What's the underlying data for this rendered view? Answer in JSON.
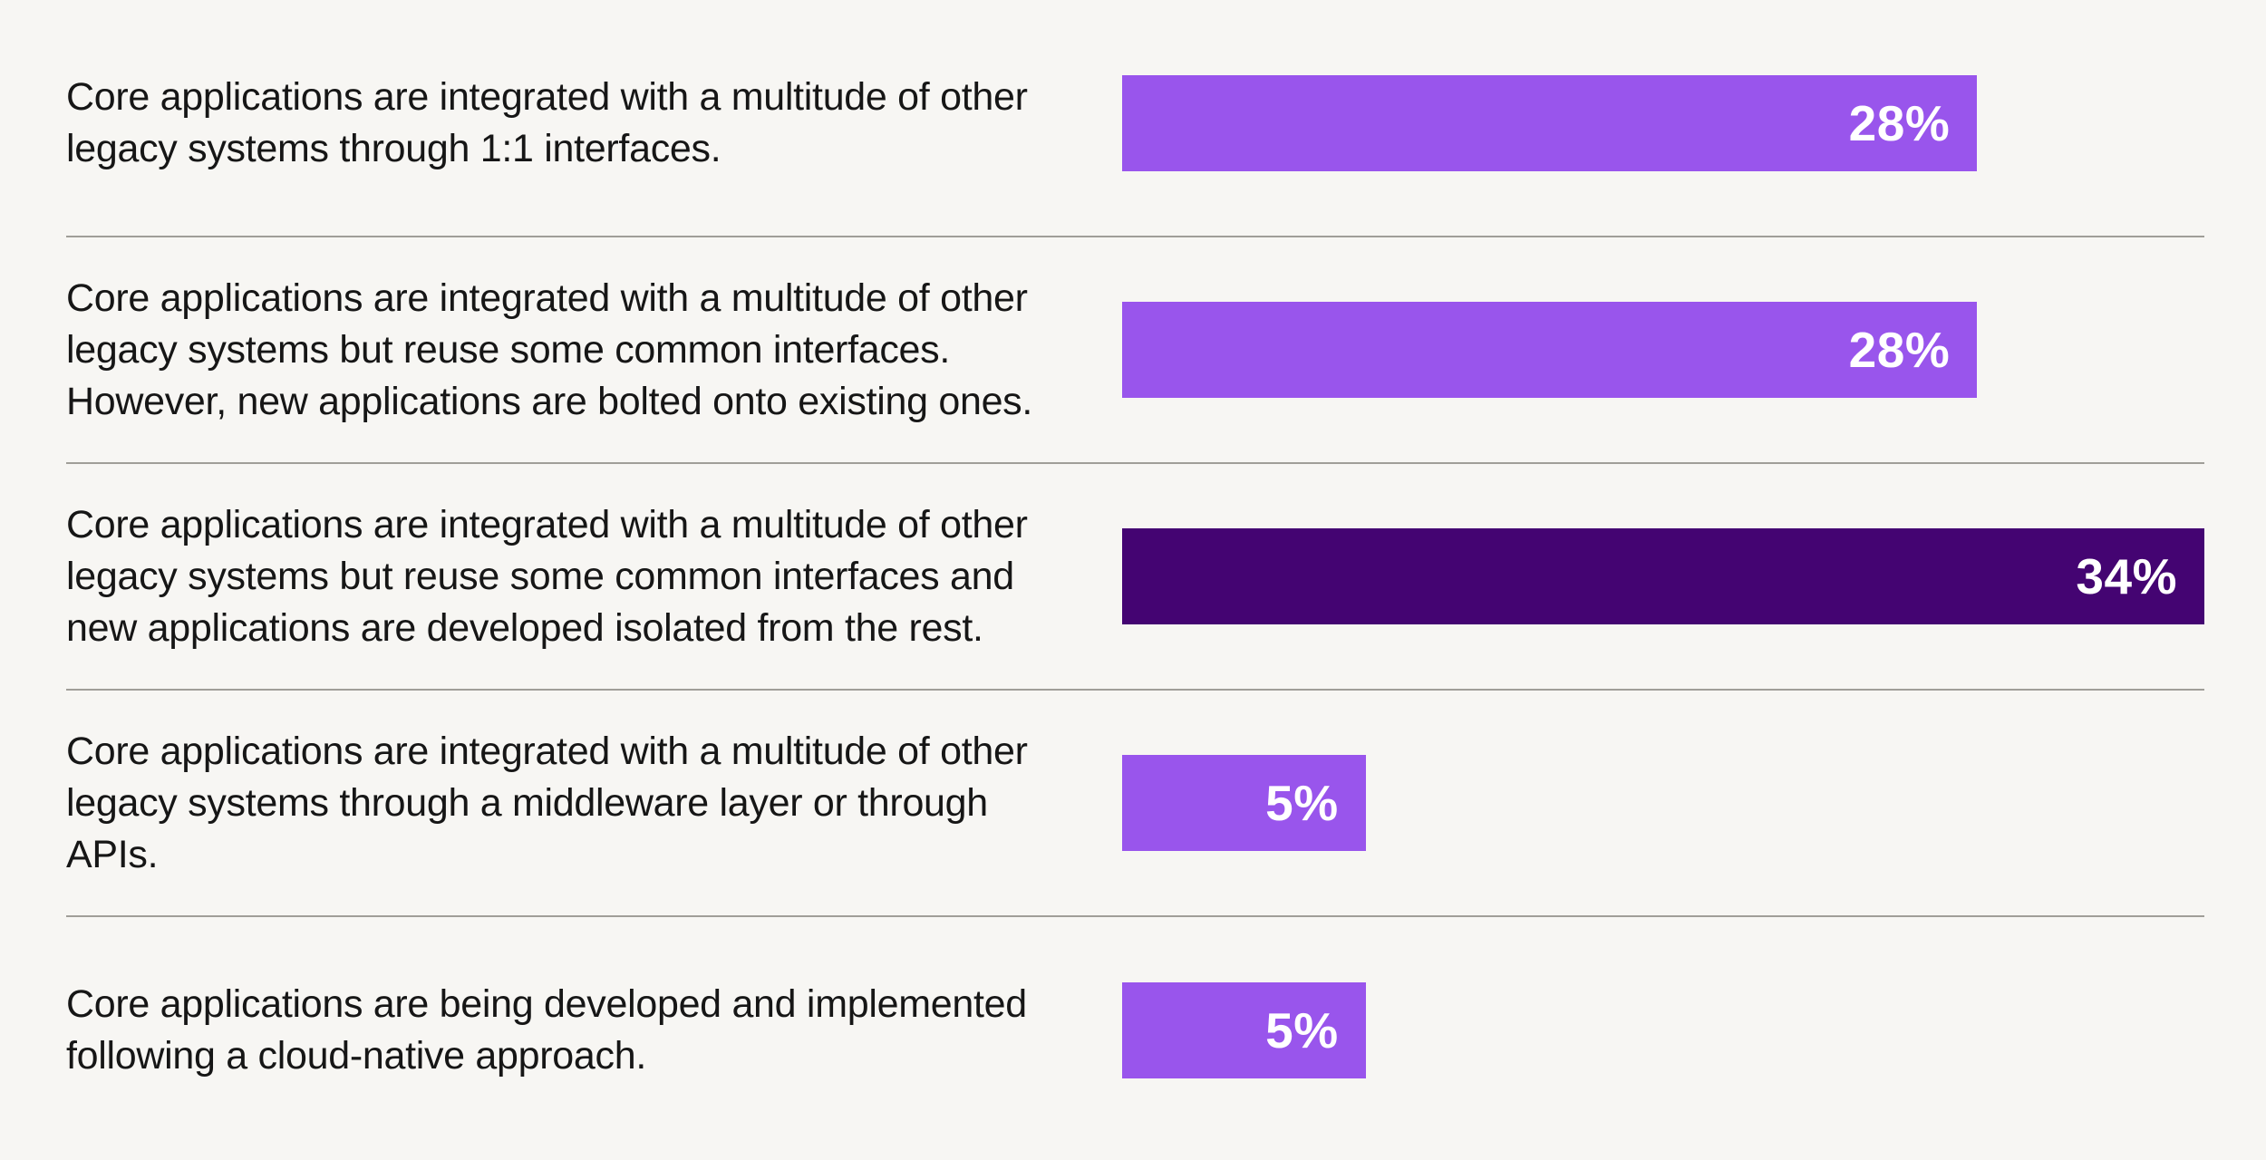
{
  "page": {
    "background": "#f7f6f3"
  },
  "chart_data": {
    "type": "bar",
    "orientation": "horizontal",
    "title": "",
    "xlabel": "",
    "ylabel": "",
    "unit": "%",
    "grid": false,
    "legend": false,
    "axes_visible": false,
    "categories": [
      "Core applications are integrated with a multitude of other\nlegacy systems through 1:1 interfaces.",
      "Core applications are integrated with a multitude of other\nlegacy systems but reuse some common interfaces.\nHowever, new applications are bolted onto existing ones.",
      "Core applications are integrated with a multitude of other\nlegacy systems but reuse some common interfaces and\nnew applications are developed isolated from the rest.",
      "Core applications are integrated with a multitude of other\nlegacy systems through a middleware layer or through APIs.",
      "Core applications are being developed and implemented\nfollowing a cloud-native approach."
    ],
    "values": [
      28,
      28,
      34,
      5,
      5
    ],
    "value_labels": [
      "28%",
      "28%",
      "34%",
      "5%",
      "5%"
    ],
    "bar_width_pct": [
      79,
      79,
      100,
      22.5,
      22.5
    ],
    "highlighted_row": 2,
    "colors": {
      "bar": "#9955ec",
      "bar_highlight": "#440472",
      "value_label": "#ffffff",
      "text": "#161616",
      "divider": "#a09e98",
      "background": "#f7f6f3"
    }
  }
}
